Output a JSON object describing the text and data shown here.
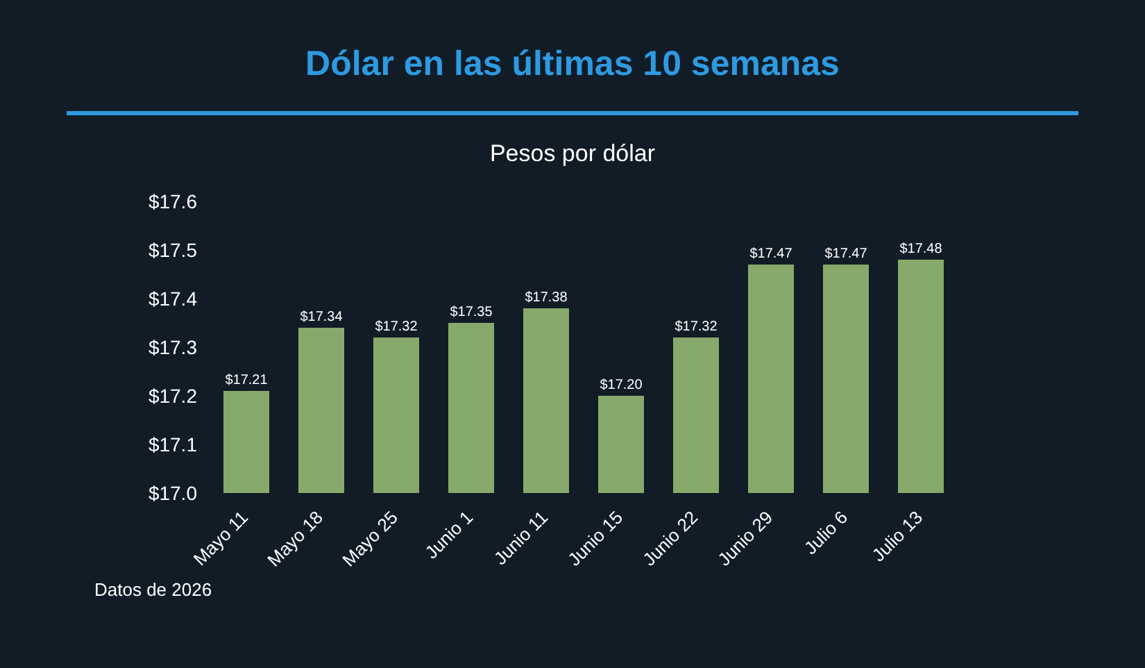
{
  "chart_data": {
    "type": "bar",
    "title": "Dólar en las últimas 10 semanas",
    "subtitle": "Pesos por dólar",
    "categories": [
      "Mayo 11",
      "Mayo 18",
      "Mayo 25",
      "Junio 1",
      "Junio 11",
      "Junio 15",
      "Junio 22",
      "Junio 29",
      "Julio 6",
      "Julio 13"
    ],
    "values": [
      17.21,
      17.34,
      17.32,
      17.35,
      17.38,
      17.2,
      17.32,
      17.47,
      17.47,
      17.48
    ],
    "value_labels": [
      "$17.21",
      "$17.34",
      "$17.32",
      "$17.35",
      "$17.38",
      "$17.20",
      "$17.32",
      "$17.47",
      "$17.47",
      "$17.48"
    ],
    "color": "#87a96b",
    "ylim": [
      17.0,
      17.6
    ],
    "yticks": [
      {
        "value": 17.0,
        "label": "$17.0"
      },
      {
        "value": 17.1,
        "label": "$17.1"
      },
      {
        "value": 17.2,
        "label": "$17.2"
      },
      {
        "value": 17.3,
        "label": "$17.3"
      },
      {
        "value": 17.4,
        "label": "$17.4"
      },
      {
        "value": 17.5,
        "label": "$17.5"
      },
      {
        "value": 17.6,
        "label": "$17.6"
      }
    ],
    "annotations": [
      "Datos de 2026"
    ]
  }
}
